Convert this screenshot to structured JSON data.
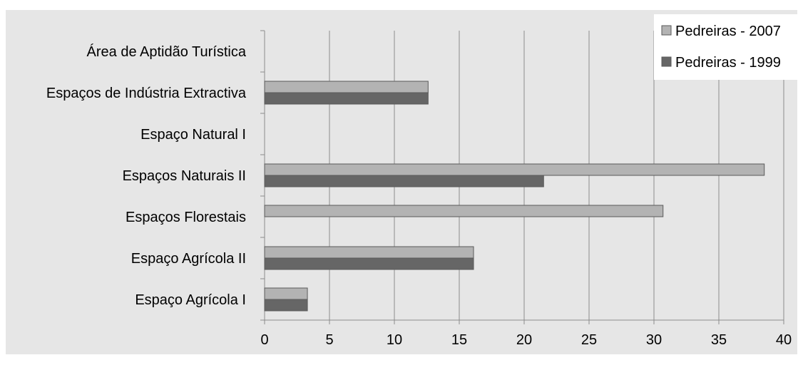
{
  "chart_data": {
    "type": "bar",
    "orientation": "horizontal",
    "categories": [
      "Espaço Agrícola I",
      "Espaço Agrícola II",
      "Espaços Florestais",
      "Espaços Naturais II",
      "Espaço Natural I",
      "Espaços de Indústria Extractiva",
      "Área de Aptidão Turística"
    ],
    "series": [
      {
        "name": "Pedreiras - 2007",
        "values": [
          3.3,
          16.1,
          30.7,
          38.5,
          0,
          12.6,
          0
        ],
        "color": "#b3b3b3"
      },
      {
        "name": "Pedreiras - 1999",
        "values": [
          3.3,
          16.1,
          0,
          21.5,
          0,
          12.6,
          0
        ],
        "color": "#666666"
      }
    ],
    "xlim": [
      0,
      40
    ],
    "xticks": [
      0,
      5,
      10,
      15,
      20,
      25,
      30,
      35,
      40
    ],
    "grid": true,
    "legend_position": "top-right",
    "background": "#e6e6e6",
    "title": "",
    "xlabel": "",
    "ylabel": ""
  }
}
